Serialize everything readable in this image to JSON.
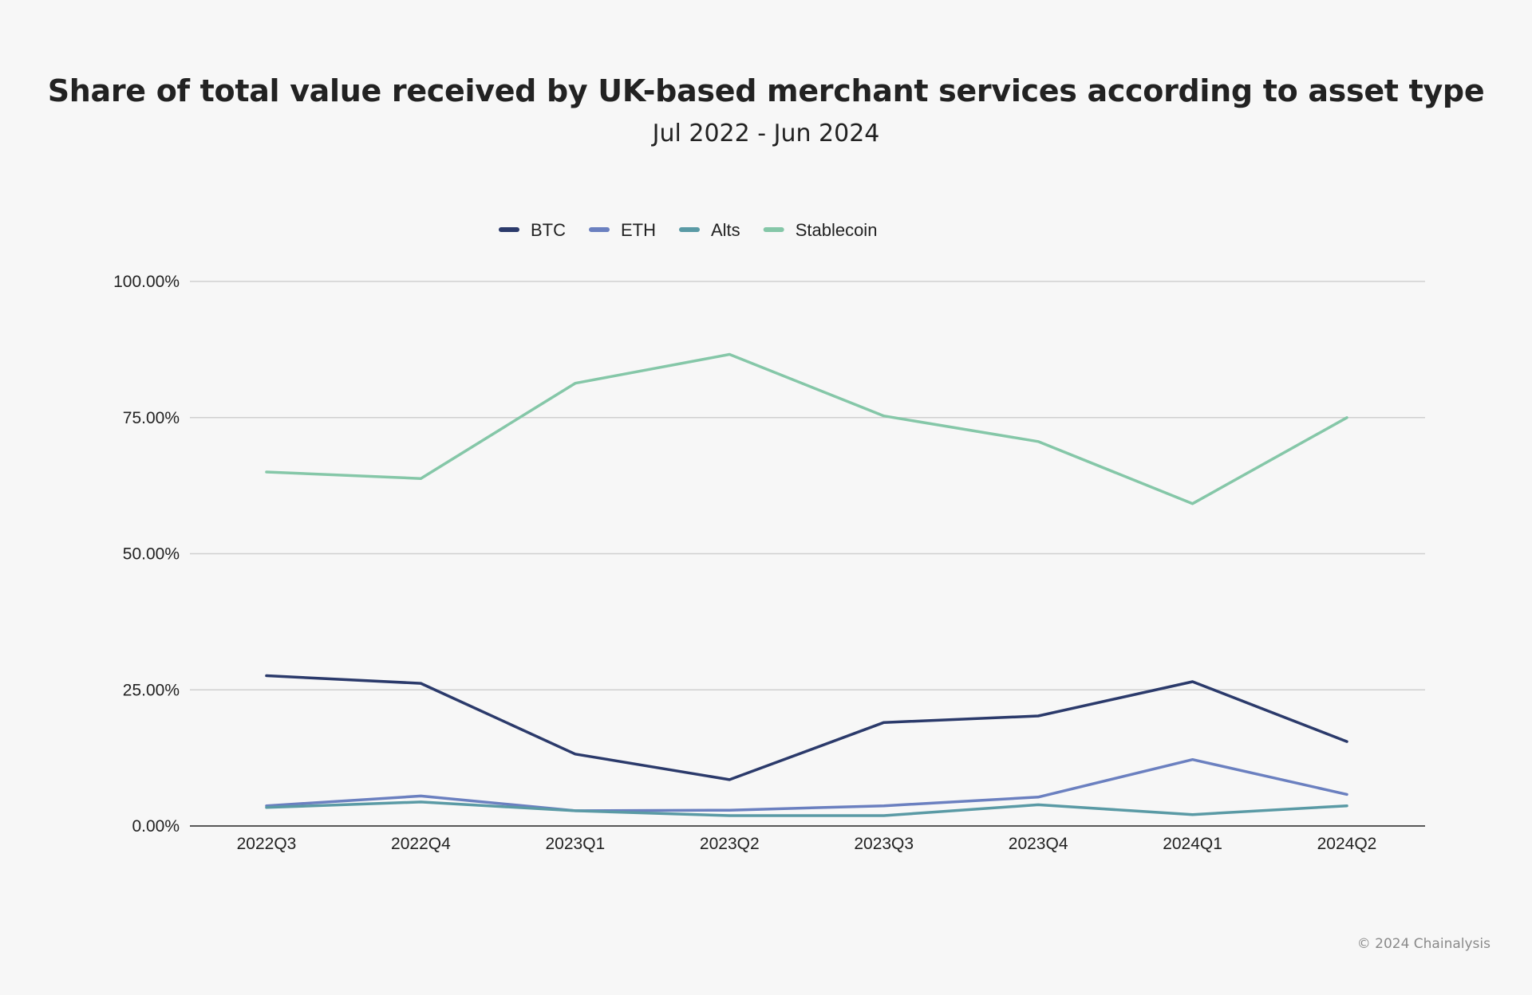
{
  "header": {
    "title": "Share of total value received by UK-based merchant services according to asset type",
    "subtitle": "Jul 2022 - Jun 2024"
  },
  "footer": {
    "copyright": "© 2024 Chainalysis"
  },
  "chart_data": {
    "type": "line",
    "title": "Share of total value received by UK-based merchant services according to asset type",
    "subtitle": "Jul 2022 - Jun 2024",
    "xlabel": "",
    "ylabel": "",
    "categories": [
      "2022Q3",
      "2022Q4",
      "2023Q1",
      "2023Q2",
      "2023Q3",
      "2023Q4",
      "2024Q1",
      "2024Q2"
    ],
    "ylim": [
      0,
      100
    ],
    "yticks": [
      0,
      25,
      50,
      75,
      100
    ],
    "ytick_labels": [
      "0.00%",
      "25.00%",
      "50.00%",
      "75.00%",
      "100.00%"
    ],
    "grid": true,
    "legend_position": "top",
    "series": [
      {
        "name": "BTC",
        "color": "#2b3a6b",
        "values": [
          27.6,
          26.2,
          13.2,
          8.5,
          19.0,
          20.2,
          26.5,
          15.5
        ]
      },
      {
        "name": "ETH",
        "color": "#6b80c0",
        "values": [
          3.7,
          5.5,
          2.8,
          2.9,
          3.7,
          5.3,
          12.2,
          5.8
        ]
      },
      {
        "name": "Alts",
        "color": "#5a9aa5",
        "values": [
          3.4,
          4.4,
          2.8,
          1.9,
          1.9,
          3.9,
          2.1,
          3.7
        ]
      },
      {
        "name": "Stablecoin",
        "color": "#85c7a8",
        "values": [
          65.0,
          63.8,
          81.3,
          86.6,
          75.3,
          70.6,
          59.2,
          75.0
        ]
      }
    ]
  }
}
